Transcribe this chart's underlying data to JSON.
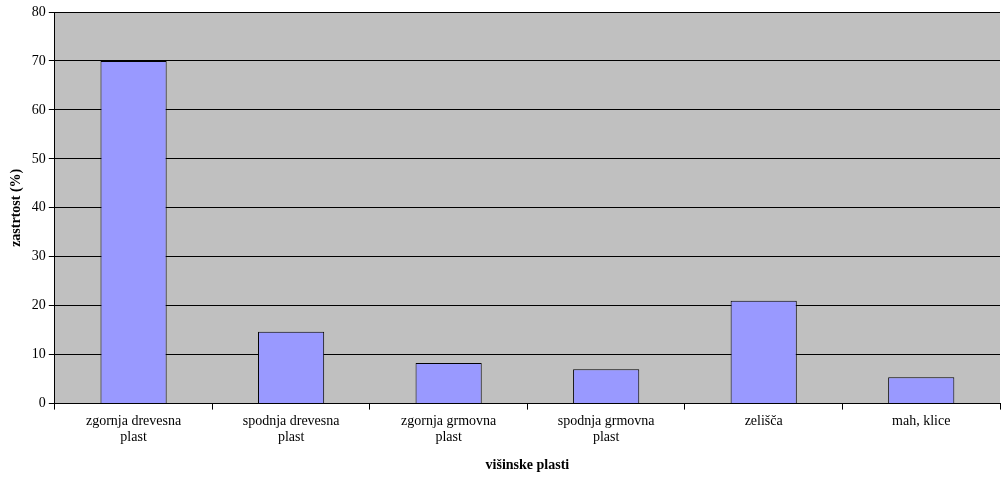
{
  "chart_data": {
    "type": "bar",
    "categories": [
      "zgornja drevesna plast",
      "spodnja drevesna plast",
      "zgornja grmovna plast",
      "spodnja grmovna plast",
      "zelišča",
      "mah, klice"
    ],
    "values": [
      70,
      14.7,
      8.3,
      7,
      21,
      5.4
    ],
    "color": "#9999ff",
    "xlabel": "višinske plasti",
    "ylabel": "zastrtost (%)",
    "ylim": [
      0,
      80
    ],
    "yticks": [
      0,
      10,
      20,
      30,
      40,
      50,
      60,
      70,
      80
    ],
    "grid": "y",
    "legend": false
  }
}
